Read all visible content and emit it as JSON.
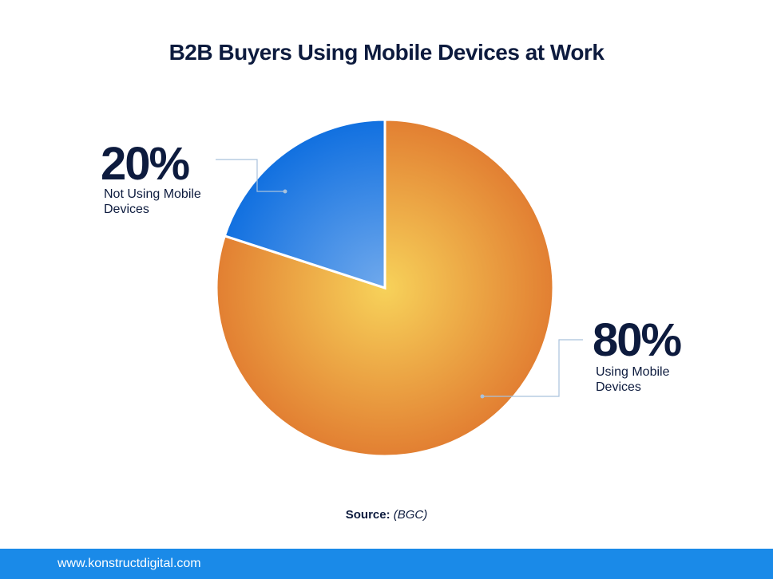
{
  "chart_data": {
    "type": "pie",
    "title": "B2B Buyers Using Mobile Devices at Work",
    "categories": [
      "Using Mobile Devices",
      "Not Using Mobile Devices"
    ],
    "values": [
      80,
      20
    ],
    "value_labels": [
      "80%",
      "20%"
    ],
    "colors": [
      "#e27f32",
      "#1170e0"
    ],
    "source_label": "Source:",
    "source": "(BGC)"
  },
  "footer": {
    "url": "www.konstructdigital.com"
  }
}
